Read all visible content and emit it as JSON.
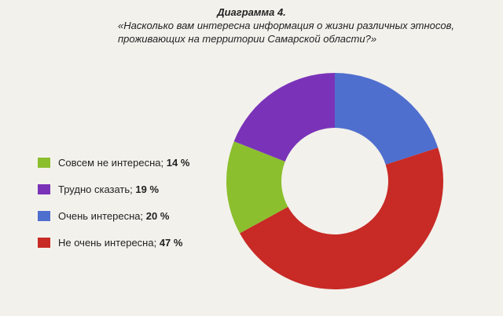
{
  "chart_data": {
    "type": "pie",
    "title": "Диаграмма 4.",
    "subtitle": "«Насколько вам интересна информация о жизни различных этносов, проживающих на территории Самарской области?»",
    "slices": [
      {
        "label": "Совсем не интересна;",
        "value_text": "14 %",
        "value": 14,
        "color": "#8bbf2e"
      },
      {
        "label": "Трудно сказать;",
        "value_text": "19 %",
        "value": 19,
        "color": "#7a33b8"
      },
      {
        "label": "Очень интересна;",
        "value_text": "20 %",
        "value": 20,
        "color": "#4f6fcf"
      },
      {
        "label": "Не очень интересна;",
        "value_text": "47 %",
        "value": 47,
        "color": "#c82a26"
      }
    ],
    "legend_position": "left",
    "start_slice_index": 2
  }
}
